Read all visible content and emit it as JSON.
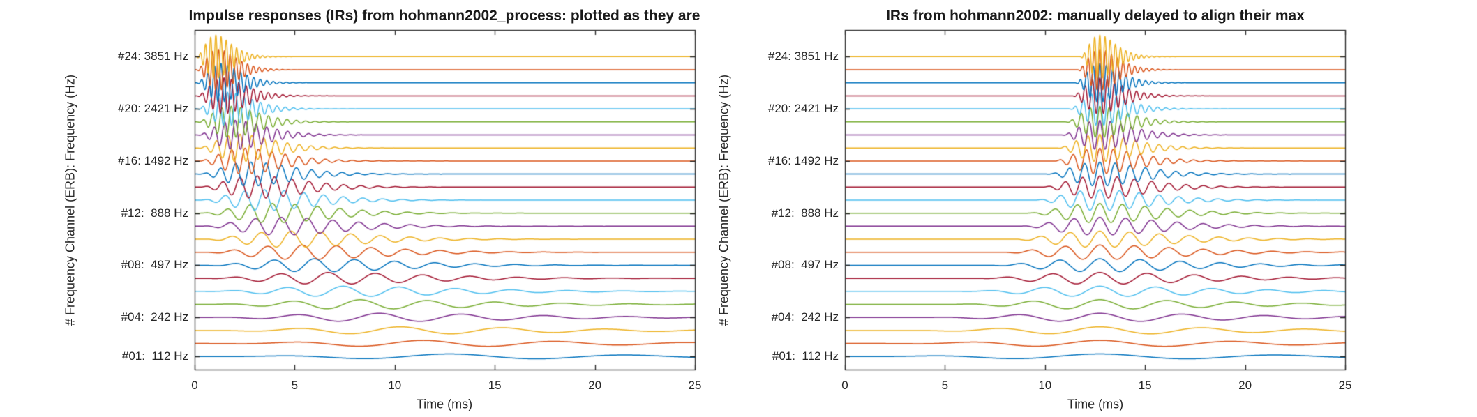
{
  "figure": {
    "background": "#ffffff",
    "text_color": "#262626",
    "palette": [
      "#0072BD",
      "#D95319",
      "#EDB120",
      "#7E2F8E",
      "#77AC30",
      "#4DBEEE",
      "#A2142F"
    ]
  },
  "chart_data": {
    "type": "line",
    "description": "Two subplots of 24 stacked gammatone-filterbank impulse responses (one trace per frequency channel, vertical offset = channel number). Model per channel: y(t) = offset + A * (t'/tp)^3 * exp(3*(1 - t'/tp)) * cos(2*pi*fc*(t'-tp)/1000), with t' = t - delay; delay = 0 in left plot, delay = align_time_ms - tp in right plot.",
    "shared": {
      "xlabel": "Time (ms)",
      "ylabel": "# Frequency Channel (ERB): Frequency (Hz)",
      "xlim": [
        0,
        25
      ],
      "ylim": [
        0,
        26.05
      ],
      "xticks": [
        0,
        5,
        10,
        15,
        20,
        25
      ],
      "yticks": [
        {
          "channel": 1,
          "label": "#01:  112 Hz"
        },
        {
          "channel": 4,
          "label": "#04:  242 Hz"
        },
        {
          "channel": 8,
          "label": "#08:  497 Hz"
        },
        {
          "channel": 12,
          "label": "#12:  888 Hz"
        },
        {
          "channel": 16,
          "label": "#16: 1492 Hz"
        },
        {
          "channel": 20,
          "label": "#20: 2421 Hz"
        },
        {
          "channel": 24,
          "label": "#24: 3851 Hz"
        }
      ],
      "grid": false,
      "box": true,
      "tick_dir": "in",
      "channels": [
        {
          "n": 1,
          "fc_hz": 112,
          "peak_time_ms": 12.74,
          "amplitude": 0.2
        },
        {
          "n": 2,
          "fc_hz": 151,
          "peak_time_ms": 11.43,
          "amplitude": 0.24
        },
        {
          "n": 3,
          "fc_hz": 194,
          "peak_time_ms": 10.27,
          "amplitude": 0.28
        },
        {
          "n": 4,
          "fc_hz": 242,
          "peak_time_ms": 9.22,
          "amplitude": 0.32
        },
        {
          "n": 5,
          "fc_hz": 296,
          "peak_time_ms": 8.27,
          "amplitude": 0.36
        },
        {
          "n": 6,
          "fc_hz": 356,
          "peak_time_ms": 7.42,
          "amplitude": 0.4
        },
        {
          "n": 7,
          "fc_hz": 422,
          "peak_time_ms": 6.67,
          "amplitude": 0.45
        },
        {
          "n": 8,
          "fc_hz": 497,
          "peak_time_ms": 5.98,
          "amplitude": 0.5
        },
        {
          "n": 9,
          "fc_hz": 579,
          "peak_time_ms": 5.37,
          "amplitude": 0.56
        },
        {
          "n": 10,
          "fc_hz": 671,
          "peak_time_ms": 4.82,
          "amplitude": 0.62
        },
        {
          "n": 11,
          "fc_hz": 774,
          "peak_time_ms": 4.33,
          "amplitude": 0.68
        },
        {
          "n": 12,
          "fc_hz": 888,
          "peak_time_ms": 3.89,
          "amplitude": 0.74
        },
        {
          "n": 13,
          "fc_hz": 1015,
          "peak_time_ms": 3.49,
          "amplitude": 0.8
        },
        {
          "n": 14,
          "fc_hz": 1157,
          "peak_time_ms": 3.13,
          "amplitude": 0.86
        },
        {
          "n": 15,
          "fc_hz": 1315,
          "peak_time_ms": 2.81,
          "amplitude": 0.92
        },
        {
          "n": 16,
          "fc_hz": 1492,
          "peak_time_ms": 2.52,
          "amplitude": 0.98
        },
        {
          "n": 17,
          "fc_hz": 1688,
          "peak_time_ms": 2.27,
          "amplitude": 1.05
        },
        {
          "n": 18,
          "fc_hz": 1906,
          "peak_time_ms": 2.03,
          "amplitude": 1.12
        },
        {
          "n": 19,
          "fc_hz": 2149,
          "peak_time_ms": 1.83,
          "amplitude": 1.2
        },
        {
          "n": 20,
          "fc_hz": 2421,
          "peak_time_ms": 1.64,
          "amplitude": 1.28
        },
        {
          "n": 21,
          "fc_hz": 2722,
          "peak_time_ms": 1.47,
          "amplitude": 1.37
        },
        {
          "n": 22,
          "fc_hz": 3059,
          "peak_time_ms": 1.32,
          "amplitude": 1.47
        },
        {
          "n": 23,
          "fc_hz": 3434,
          "peak_time_ms": 1.19,
          "amplitude": 1.57
        },
        {
          "n": 24,
          "fc_hz": 3851,
          "peak_time_ms": 1.06,
          "amplitude": 1.67
        }
      ]
    },
    "plots": [
      {
        "title": "Impulse responses (IRs) from hohmann2002_process: plotted as they are",
        "aligned": false,
        "align_time_ms": null
      },
      {
        "title": "IRs from hohmann2002: manually delayed to align their max",
        "aligned": true,
        "align_time_ms": 12.74
      }
    ]
  }
}
